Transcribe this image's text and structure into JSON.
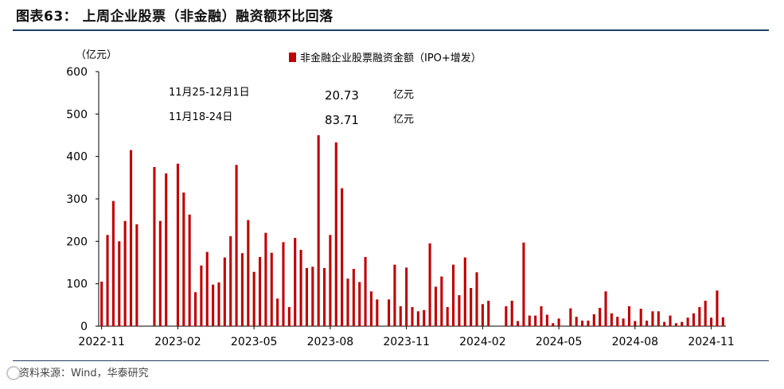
{
  "figure_title": "图表63： 上周企业股票（非金融）融资额环比回落",
  "source_text": "资料来源：Wind，华泰研究",
  "colors": {
    "bar": "#c00000",
    "axis": "#000000",
    "rule": "#1f3f66"
  },
  "annotations": [
    {
      "label": "11月25-12月1日",
      "value": "20.73",
      "unit": "亿元"
    },
    {
      "label": "11月18-24日",
      "value": "83.71",
      "unit": "亿元"
    }
  ],
  "chart_data": {
    "type": "bar",
    "ylabel": "（亿元）",
    "ylim": [
      0,
      600
    ],
    "yticks": [
      "0",
      "100",
      "200",
      "300",
      "400",
      "500",
      "600"
    ],
    "xtick_labels": [
      "2022-11",
      "2023-02",
      "2023-05",
      "2023-08",
      "2023-11",
      "2024-02",
      "2024-05",
      "2024-08",
      "2024-11"
    ],
    "xtick_positions": [
      0,
      13,
      26,
      39,
      52,
      65,
      78,
      91,
      104
    ],
    "series": [
      {
        "name": "非金融企业股票融资金额（IPO+增发）",
        "values": [
          105,
          215,
          295,
          200,
          248,
          415,
          240,
          0,
          0,
          375,
          248,
          360,
          0,
          383,
          315,
          263,
          80,
          143,
          175,
          98,
          103,
          162,
          212,
          380,
          172,
          250,
          128,
          163,
          220,
          173,
          65,
          198,
          45,
          208,
          180,
          137,
          140,
          450,
          137,
          215,
          433,
          325,
          112,
          135,
          104,
          163,
          82,
          63,
          0,
          63,
          145,
          47,
          138,
          45,
          35,
          38,
          195,
          93,
          117,
          45,
          145,
          73,
          162,
          90,
          127,
          52,
          60,
          0,
          0,
          47,
          60,
          12,
          197,
          25,
          25,
          47,
          27,
          7,
          18,
          0,
          42,
          22,
          13,
          13,
          28,
          43,
          82,
          30,
          22,
          18,
          47,
          12,
          41,
          13,
          35,
          35,
          10,
          25,
          7,
          10,
          20,
          30,
          45,
          60,
          20,
          84,
          21
        ]
      }
    ]
  }
}
